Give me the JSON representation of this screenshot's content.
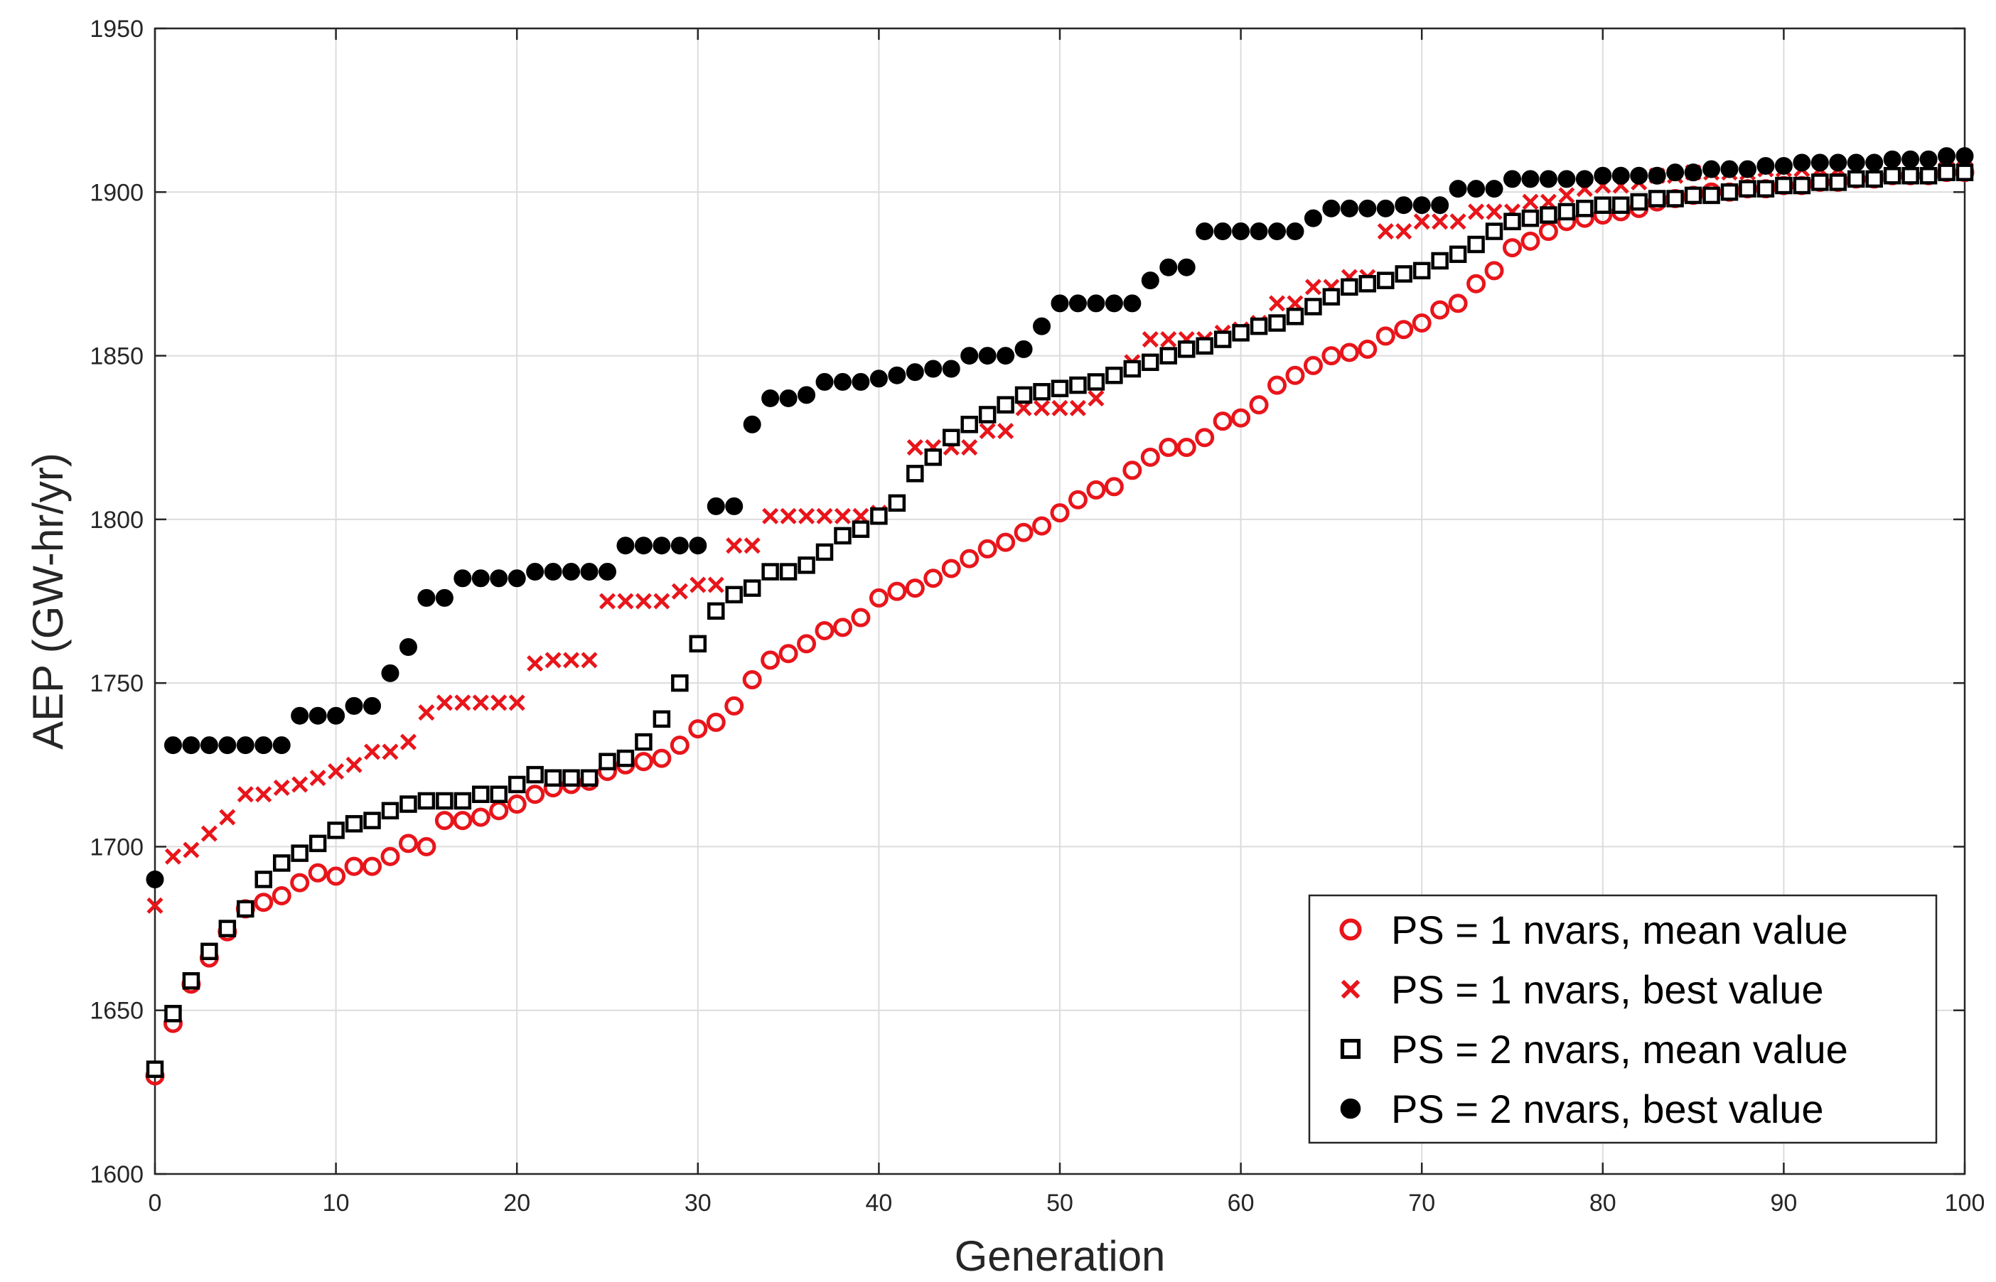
{
  "chart_data": {
    "type": "scatter",
    "title": "",
    "xlabel": "Generation",
    "ylabel": "AEP (GW-hr/yr)",
    "xlim": [
      0,
      100
    ],
    "ylim": [
      1600,
      1950
    ],
    "xticks": [
      0,
      10,
      20,
      30,
      40,
      50,
      60,
      70,
      80,
      90,
      100
    ],
    "yticks": [
      1600,
      1650,
      1700,
      1750,
      1800,
      1850,
      1900,
      1950
    ],
    "grid": true,
    "legend_position": "bottom-right",
    "colors": {
      "red": "#e8151b",
      "black": "#000000",
      "grid": "#dcdcdc",
      "axis": "#262626"
    },
    "x": [
      0,
      1,
      2,
      3,
      4,
      5,
      6,
      7,
      8,
      9,
      10,
      11,
      12,
      13,
      14,
      15,
      16,
      17,
      18,
      19,
      20,
      21,
      22,
      23,
      24,
      25,
      26,
      27,
      28,
      29,
      30,
      31,
      32,
      33,
      34,
      35,
      36,
      37,
      38,
      39,
      40,
      41,
      42,
      43,
      44,
      45,
      46,
      47,
      48,
      49,
      50,
      51,
      52,
      53,
      54,
      55,
      56,
      57,
      58,
      59,
      60,
      61,
      62,
      63,
      64,
      65,
      66,
      67,
      68,
      69,
      70,
      71,
      72,
      73,
      74,
      75,
      76,
      77,
      78,
      79,
      80,
      81,
      82,
      83,
      84,
      85,
      86,
      87,
      88,
      89,
      90,
      91,
      92,
      93,
      94,
      95,
      96,
      97,
      98,
      99,
      100
    ],
    "series": [
      {
        "name": "PS = 1 nvars, mean value",
        "marker": "circle",
        "color": "#e8151b",
        "values": [
          1630,
          1646,
          1658,
          1666,
          1674,
          1681,
          1683,
          1685,
          1689,
          1692,
          1691,
          1694,
          1694,
          1697,
          1701,
          1700,
          1708,
          1708,
          1709,
          1711,
          1713,
          1716,
          1718,
          1719,
          1720,
          1723,
          1725,
          1726,
          1727,
          1731,
          1736,
          1738,
          1743,
          1751,
          1757,
          1759,
          1762,
          1766,
          1767,
          1770,
          1776,
          1778,
          1779,
          1782,
          1785,
          1788,
          1791,
          1793,
          1796,
          1798,
          1802,
          1806,
          1809,
          1810,
          1815,
          1819,
          1822,
          1822,
          1825,
          1830,
          1831,
          1835,
          1841,
          1844,
          1847,
          1850,
          1851,
          1852,
          1856,
          1858,
          1860,
          1864,
          1866,
          1872,
          1876,
          1883,
          1885,
          1888,
          1891,
          1892,
          1893,
          1894,
          1895,
          1897,
          1898,
          1899,
          1900,
          1900,
          1901,
          1901,
          1902,
          1902,
          1903,
          1903,
          1904,
          1904,
          1905,
          1905,
          1905,
          1906,
          1906
        ]
      },
      {
        "name": "PS = 1 nvars, best value",
        "marker": "x",
        "color": "#e8151b",
        "values": [
          1682,
          1697,
          1699,
          1704,
          1709,
          1716,
          1716,
          1718,
          1719,
          1721,
          1723,
          1725,
          1729,
          1729,
          1732,
          1741,
          1744,
          1744,
          1744,
          1744,
          1744,
          1756,
          1757,
          1757,
          1757,
          1775,
          1775,
          1775,
          1775,
          1778,
          1780,
          1780,
          1792,
          1792,
          1801,
          1801,
          1801,
          1801,
          1801,
          1801,
          1802,
          1805,
          1822,
          1822,
          1822,
          1822,
          1827,
          1827,
          1834,
          1834,
          1834,
          1834,
          1837,
          1844,
          1848,
          1855,
          1855,
          1855,
          1855,
          1857,
          1858,
          1860,
          1866,
          1866,
          1871,
          1871,
          1874,
          1874,
          1888,
          1888,
          1891,
          1891,
          1891,
          1894,
          1894,
          1894,
          1897,
          1897,
          1899,
          1901,
          1902,
          1902,
          1903,
          1905,
          1905,
          1906,
          1906,
          1906,
          1906,
          1907,
          1907,
          1907,
          1907,
          1907,
          1907,
          1907,
          1907,
          1907,
          1907,
          1907,
          1907
        ]
      },
      {
        "name": "PS = 2 nvars, mean value",
        "marker": "square",
        "color": "#000000",
        "values": [
          1632,
          1649,
          1659,
          1668,
          1675,
          1681,
          1690,
          1695,
          1698,
          1701,
          1705,
          1707,
          1708,
          1711,
          1713,
          1714,
          1714,
          1714,
          1716,
          1716,
          1719,
          1722,
          1721,
          1721,
          1721,
          1726,
          1727,
          1732,
          1739,
          1750,
          1762,
          1772,
          1777,
          1779,
          1784,
          1784,
          1786,
          1790,
          1795,
          1797,
          1801,
          1805,
          1814,
          1819,
          1825,
          1829,
          1832,
          1835,
          1838,
          1839,
          1840,
          1841,
          1842,
          1844,
          1846,
          1848,
          1850,
          1852,
          1853,
          1855,
          1857,
          1859,
          1860,
          1862,
          1865,
          1868,
          1871,
          1872,
          1873,
          1875,
          1876,
          1879,
          1881,
          1884,
          1888,
          1891,
          1892,
          1893,
          1894,
          1895,
          1896,
          1896,
          1897,
          1898,
          1898,
          1899,
          1899,
          1900,
          1901,
          1901,
          1902,
          1902,
          1903,
          1903,
          1904,
          1904,
          1905,
          1905,
          1905,
          1906,
          1906
        ]
      },
      {
        "name": "PS = 2 nvars, best value",
        "marker": "dot",
        "color": "#000000",
        "values": [
          1690,
          1731,
          1731,
          1731,
          1731,
          1731,
          1731,
          1731,
          1740,
          1740,
          1740,
          1743,
          1743,
          1753,
          1761,
          1776,
          1776,
          1782,
          1782,
          1782,
          1782,
          1784,
          1784,
          1784,
          1784,
          1784,
          1792,
          1792,
          1792,
          1792,
          1792,
          1804,
          1804,
          1829,
          1837,
          1837,
          1838,
          1842,
          1842,
          1842,
          1843,
          1844,
          1845,
          1846,
          1846,
          1850,
          1850,
          1850,
          1852,
          1859,
          1866,
          1866,
          1866,
          1866,
          1866,
          1873,
          1877,
          1877,
          1888,
          1888,
          1888,
          1888,
          1888,
          1888,
          1892,
          1895,
          1895,
          1895,
          1895,
          1896,
          1896,
          1896,
          1901,
          1901,
          1901,
          1904,
          1904,
          1904,
          1904,
          1904,
          1905,
          1905,
          1905,
          1905,
          1906,
          1906,
          1907,
          1907,
          1907,
          1908,
          1908,
          1909,
          1909,
          1909,
          1909,
          1909,
          1910,
          1910,
          1910,
          1911,
          1911
        ]
      }
    ]
  }
}
